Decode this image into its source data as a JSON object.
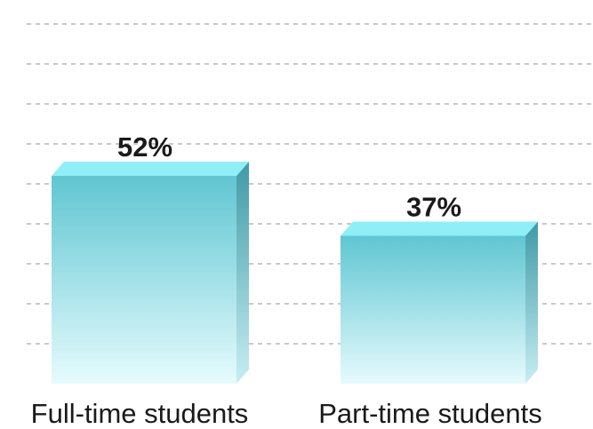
{
  "chart_data": {
    "type": "bar",
    "style": "3d",
    "categories": [
      "Full-time students",
      "Part-time students"
    ],
    "values": [
      52,
      37
    ],
    "value_labels": [
      "52%",
      "37%"
    ],
    "unit": "%",
    "ylim": [
      0,
      90
    ],
    "grid": true,
    "legend": "none",
    "colors": {
      "bar_top": "#5fc6d2",
      "bar_bottom": "#e6fbfd",
      "bar_cap": "#8feff6",
      "bar_side": "#3f9aa6",
      "grid": "#c9c9c9",
      "text": "#1a1a1a"
    }
  }
}
